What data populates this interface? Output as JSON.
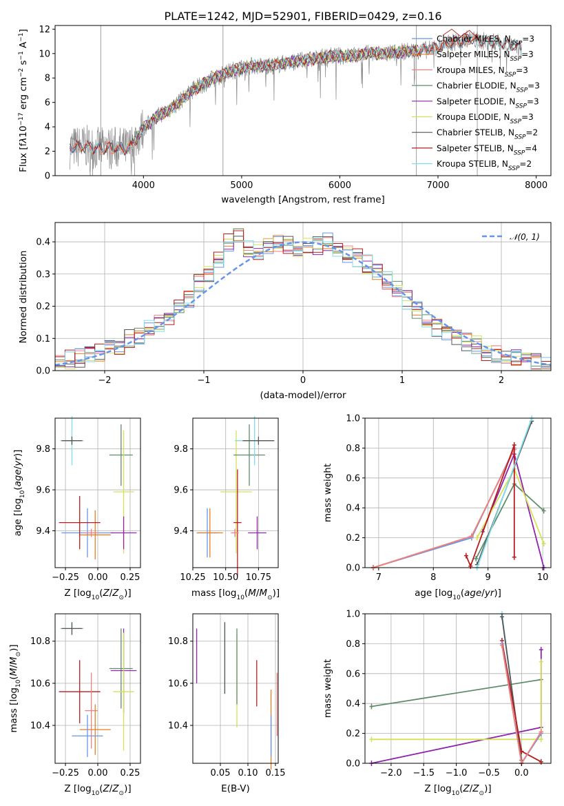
{
  "title": "PLATE=1242, MJD=52901, FIBERID=0429, z=0.16",
  "colors": {
    "chabrier_miles": "#6495ED",
    "salpeter_miles": "#E67E22",
    "kroupa_miles": "#F08080",
    "chabrier_elodie": "#5E8C6A",
    "salpeter_elodie": "#8E24AA",
    "kroupa_elodie": "#D4E157",
    "chabrier_stelib": "#555555",
    "salpeter_stelib": "#B71C1C",
    "kroupa_stelib": "#80DEEA",
    "data": "#888888",
    "gaussian": "#6495ED"
  },
  "legend_spectrum": [
    {
      "label": "Chabrier MILES, N_SSP=3",
      "key": "chabrier_miles"
    },
    {
      "label": "Salpeter MILES, N_SSP=3",
      "key": "salpeter_miles"
    },
    {
      "label": "Kroupa MILES, N_SSP=3",
      "key": "kroupa_miles"
    },
    {
      "label": "Chabrier ELODIE, N_SSP=3",
      "key": "chabrier_elodie"
    },
    {
      "label": "Salpeter ELODIE, N_SSP=3",
      "key": "salpeter_elodie"
    },
    {
      "label": "Kroupa ELODIE, N_SSP=3",
      "key": "kroupa_elodie"
    },
    {
      "label": "Chabrier STELIB, N_SSP=2",
      "key": "chabrier_stelib"
    },
    {
      "label": "Salpeter STELIB, N_SSP=4",
      "key": "salpeter_stelib"
    },
    {
      "label": "Kroupa STELIB, N_SSP=2",
      "key": "kroupa_stelib"
    }
  ],
  "legend_hist": "𝒩(0, 1)",
  "chart_data": [
    {
      "type": "line",
      "name": "spectrum",
      "xlabel": "wavelength [Angstrom, rest frame]",
      "ylabel": "Flux [fλ 10^-17 erg cm^-2 s^-1 A^-1]",
      "xlim": [
        3100,
        8150
      ],
      "ylim": [
        0,
        12.3
      ],
      "xticks": [
        4000,
        5000,
        6000,
        7000,
        8000
      ],
      "yticks": [
        0,
        2,
        4,
        6,
        8,
        10,
        12
      ],
      "model_continuum": {
        "x": [
          3250,
          3400,
          3550,
          3700,
          3850,
          4000,
          4150,
          4300,
          4500,
          4700,
          4900,
          5100,
          5300,
          5500,
          5700,
          5900,
          6100,
          6300,
          6500,
          6700,
          6900,
          7100,
          7300,
          7500,
          7700,
          7850
        ],
        "y": [
          2.3,
          2.4,
          2.2,
          2.3,
          2.2,
          3.9,
          4.9,
          5.6,
          7.0,
          7.9,
          8.6,
          9.0,
          9.0,
          9.3,
          9.5,
          9.8,
          9.8,
          10.0,
          10.0,
          10.2,
          10.3,
          10.8,
          11.2,
          11.0,
          10.8,
          10.4
        ]
      },
      "salpeter_stelib_red_end": [
        11.5,
        12.0,
        11.4,
        11.9,
        11.2
      ]
    },
    {
      "type": "histogram",
      "name": "residuals",
      "xlabel": "(data-model)/error",
      "ylabel": "Normed distribution",
      "xlim": [
        -2.5,
        2.5
      ],
      "ylim": [
        0,
        0.46
      ],
      "xticks": [
        -2,
        -1,
        0,
        1,
        2
      ],
      "yticks": [
        0.0,
        0.1,
        0.2,
        0.3,
        0.4
      ],
      "bin_edges": [
        -2.5,
        -2.4,
        -2.3,
        -2.2,
        -2.1,
        -2.0,
        -1.9,
        -1.8,
        -1.7,
        -1.6,
        -1.5,
        -1.4,
        -1.3,
        -1.2,
        -1.1,
        -1.0,
        -0.9,
        -0.8,
        -0.7,
        -0.6,
        -0.5,
        -0.4,
        -0.3,
        -0.2,
        -0.1,
        0.0,
        0.1,
        0.2,
        0.3,
        0.4,
        0.5,
        0.6,
        0.7,
        0.8,
        0.9,
        1.0,
        1.1,
        1.2,
        1.3,
        1.4,
        1.5,
        1.6,
        1.7,
        1.8,
        1.9,
        2.0,
        2.1,
        2.2,
        2.3,
        2.4,
        2.5
      ],
      "base_values": [
        0.04,
        0.035,
        0.04,
        0.05,
        0.055,
        0.07,
        0.08,
        0.1,
        0.11,
        0.13,
        0.15,
        0.17,
        0.2,
        0.22,
        0.27,
        0.3,
        0.35,
        0.4,
        0.42,
        0.38,
        0.37,
        0.39,
        0.4,
        0.39,
        0.38,
        0.39,
        0.39,
        0.4,
        0.38,
        0.36,
        0.35,
        0.33,
        0.31,
        0.28,
        0.25,
        0.22,
        0.19,
        0.16,
        0.13,
        0.12,
        0.11,
        0.09,
        0.08,
        0.06,
        0.05,
        0.04,
        0.035,
        0.03,
        0.025,
        0.02
      ],
      "gaussian": {
        "mu": 0,
        "sigma": 1
      }
    },
    {
      "type": "scatter",
      "name": "age_vs_Z",
      "xlabel": "Z [log10(Z/Z⊙)]",
      "ylabel": "age [log10(age/yr)]",
      "xlim": [
        -0.33,
        0.33
      ],
      "ylim": [
        9.22,
        9.95
      ],
      "xticks": [
        -0.25,
        0.0,
        0.25
      ],
      "yticks": [
        9.4,
        9.6,
        9.8
      ],
      "points": [
        {
          "key": "kroupa_stelib",
          "x": -0.2,
          "y": 9.84,
          "xerr": 0.09,
          "yerr": 0.12
        },
        {
          "key": "chabrier_stelib",
          "x": -0.2,
          "y": 9.84,
          "xerr": 0.08,
          "yerr": 0.02
        },
        {
          "key": "chabrier_miles",
          "x": -0.08,
          "y": 9.39,
          "xerr": 0.2,
          "yerr": 0.12
        },
        {
          "key": "salpeter_miles",
          "x": -0.02,
          "y": 9.38,
          "xerr": 0.12,
          "yerr": 0.12
        },
        {
          "key": "kroupa_miles",
          "x": -0.05,
          "y": 9.39,
          "xerr": 0.05,
          "yerr": 0.02
        },
        {
          "key": "salpeter_stelib",
          "x": -0.14,
          "y": 9.44,
          "xerr": 0.16,
          "yerr": 0.13
        },
        {
          "key": "chabrier_elodie",
          "x": 0.18,
          "y": 9.77,
          "xerr": 0.09,
          "yerr": 0.15
        },
        {
          "key": "kroupa_elodie",
          "x": 0.2,
          "y": 9.59,
          "xerr": 0.08,
          "yerr": 0.3
        },
        {
          "key": "salpeter_elodie",
          "x": 0.2,
          "y": 9.39,
          "xerr": 0.1,
          "yerr": 0.08
        }
      ]
    },
    {
      "type": "scatter",
      "name": "age_vs_mass",
      "xlabel": "mass [log10(M/M⊙)]",
      "ylabel": "",
      "xlim": [
        10.25,
        10.9
      ],
      "ylim": [
        9.22,
        9.95
      ],
      "xticks": [
        10.25,
        10.5,
        10.75
      ],
      "yticks": [
        9.4,
        9.6,
        9.8
      ],
      "points": [
        {
          "key": "chabrier_miles",
          "x": 10.36,
          "y": 9.39,
          "xerr": 0.08,
          "yerr": 0.12
        },
        {
          "key": "salpeter_miles",
          "x": 10.38,
          "y": 9.39,
          "xerr": 0.1,
          "yerr": 0.12
        },
        {
          "key": "kroupa_elodie",
          "x": 10.58,
          "y": 9.59,
          "xerr": 0.12,
          "yerr": 0.3
        },
        {
          "key": "chabrier_elodie",
          "x": 10.68,
          "y": 9.77,
          "xerr": 0.12,
          "yerr": 0.15
        },
        {
          "key": "kroupa_stelib",
          "x": 10.72,
          "y": 9.84,
          "xerr": 0.15,
          "yerr": 0.12
        },
        {
          "key": "chabrier_stelib",
          "x": 10.75,
          "y": 9.84,
          "xerr": 0.12,
          "yerr": 0.02
        },
        {
          "key": "salpeter_stelib",
          "x": 10.59,
          "y": 9.44,
          "xerr": 0.03,
          "yerr": 0.26
        },
        {
          "key": "salpeter_elodie",
          "x": 10.74,
          "y": 9.39,
          "xerr": 0.07,
          "yerr": 0.08
        },
        {
          "key": "kroupa_miles",
          "x": 10.57,
          "y": 9.39,
          "xerr": 0.03,
          "yerr": 0.02
        }
      ]
    },
    {
      "type": "line",
      "name": "weight_vs_age",
      "xlabel": "age [log10(age/yr)]",
      "ylabel": "mass weight",
      "xlim": [
        6.75,
        10.15
      ],
      "ylim": [
        0,
        1
      ],
      "xticks": [
        7,
        8,
        9,
        10
      ],
      "yticks": [
        0.0,
        0.2,
        0.4,
        0.6,
        0.8,
        1.0
      ],
      "series": [
        {
          "key": "chabrier_miles",
          "x": [
            6.9,
            8.7,
            9.48
          ],
          "y": [
            0.0,
            0.2,
            0.8
          ]
        },
        {
          "key": "salpeter_miles",
          "x": [
            6.9,
            8.7,
            9.48
          ],
          "y": [
            0.0,
            0.21,
            0.79
          ]
        },
        {
          "key": "kroupa_miles",
          "x": [
            6.9,
            8.7,
            9.48
          ],
          "y": [
            0.0,
            0.21,
            0.79
          ]
        },
        {
          "key": "chabrier_elodie",
          "x": [
            8.78,
            9.48,
            10.02
          ],
          "y": [
            0.06,
            0.56,
            0.38
          ]
        },
        {
          "key": "salpeter_elodie",
          "x": [
            8.9,
            9.48,
            10.02
          ],
          "y": [
            0.24,
            0.76,
            0.0
          ]
        },
        {
          "key": "kroupa_elodie",
          "x": [
            8.8,
            9.48,
            10.02
          ],
          "y": [
            0.2,
            0.66,
            0.16
          ]
        },
        {
          "key": "chabrier_stelib",
          "x": [
            8.8,
            9.8
          ],
          "y": [
            0.02,
            0.98
          ]
        },
        {
          "key": "salpeter_stelib",
          "x": [
            8.6,
            8.68,
            9.48,
            9.48
          ],
          "y": [
            0.08,
            0.01,
            0.82,
            0.07
          ]
        },
        {
          "key": "kroupa_stelib",
          "x": [
            8.8,
            9.8
          ],
          "y": [
            0.0,
            1.0
          ]
        }
      ]
    },
    {
      "type": "scatter",
      "name": "mass_vs_Z",
      "xlabel": "Z [log10(Z/Z⊙)]",
      "ylabel": "mass [log10(M/M⊙)]",
      "xlim": [
        -0.33,
        0.33
      ],
      "ylim": [
        10.22,
        10.93
      ],
      "xticks": [
        -0.25,
        0.0,
        0.25
      ],
      "yticks": [
        10.4,
        10.6,
        10.8
      ],
      "points": [
        {
          "key": "kroupa_stelib",
          "x": -0.2,
          "y": 10.86,
          "xerr": 0.09,
          "yerr": 0.03
        },
        {
          "key": "chabrier_stelib",
          "x": -0.2,
          "y": 10.86,
          "xerr": 0.08,
          "yerr": 0.03
        },
        {
          "key": "chabrier_elodie",
          "x": 0.18,
          "y": 10.67,
          "xerr": 0.09,
          "yerr": 0.19
        },
        {
          "key": "salpeter_elodie",
          "x": 0.2,
          "y": 10.66,
          "xerr": 0.1,
          "yerr": 0.2
        },
        {
          "key": "kroupa_elodie",
          "x": 0.2,
          "y": 10.56,
          "xerr": 0.08,
          "yerr": 0.28
        },
        {
          "key": "salpeter_stelib",
          "x": -0.14,
          "y": 10.56,
          "xerr": 0.16,
          "yerr": 0.15
        },
        {
          "key": "kroupa_miles",
          "x": -0.05,
          "y": 10.47,
          "xerr": 0.05,
          "yerr": 0.18
        },
        {
          "key": "salpeter_miles",
          "x": -0.02,
          "y": 10.38,
          "xerr": 0.12,
          "yerr": 0.12
        },
        {
          "key": "chabrier_miles",
          "x": -0.08,
          "y": 10.35,
          "xerr": 0.12,
          "yerr": 0.1
        }
      ]
    },
    {
      "type": "scatter",
      "name": "mass_vs_EBV",
      "xlabel": "E(B-V)",
      "ylabel": "",
      "xlim": [
        0.0,
        0.155
      ],
      "ylim": [
        10.22,
        10.93
      ],
      "xticks": [
        0.05,
        0.1,
        0.15
      ],
      "yticks": [
        10.4,
        10.6,
        10.8
      ],
      "points": [
        {
          "key": "salpeter_elodie",
          "x": 0.007,
          "y": 10.73,
          "yerr": 0.13
        },
        {
          "key": "kroupa_stelib",
          "x": 0.058,
          "y": 10.72,
          "yerr": 0.17
        },
        {
          "key": "chabrier_stelib",
          "x": 0.058,
          "y": 10.72,
          "yerr": 0.17
        },
        {
          "key": "kroupa_elodie",
          "x": 0.08,
          "y": 10.61,
          "yerr": 0.22
        },
        {
          "key": "chabrier_elodie",
          "x": 0.08,
          "y": 10.68,
          "yerr": 0.18
        },
        {
          "key": "salpeter_stelib",
          "x": 0.116,
          "y": 10.6,
          "yerr": 0.11
        },
        {
          "key": "salpeter_miles",
          "x": 0.142,
          "y": 10.38,
          "yerr": 0.19
        },
        {
          "key": "chabrier_miles",
          "x": 0.142,
          "y": 10.35,
          "yerr": 0.1
        },
        {
          "key": "kroupa_miles",
          "x": 0.153,
          "y": 10.5,
          "yerr": 0.15
        }
      ]
    },
    {
      "type": "line",
      "name": "weight_vs_Z",
      "xlabel": "Z [log10(Z/Z⊙)]",
      "ylabel": "mass weight",
      "xlim": [
        -2.4,
        0.45
      ],
      "ylim": [
        0,
        1
      ],
      "xticks": [
        -2.0,
        -1.5,
        -1.0,
        -0.5,
        0.0
      ],
      "yticks": [
        0.0,
        0.2,
        0.4,
        0.6,
        0.8,
        1.0
      ],
      "series": [
        {
          "key": "chabrier_elodie",
          "x": [
            -2.3,
            0.3
          ],
          "y": [
            0.38,
            0.56
          ]
        },
        {
          "key": "salpeter_elodie",
          "x": [
            -2.3,
            0.3,
            0.3
          ],
          "y": [
            0.0,
            0.24,
            0.76
          ]
        },
        {
          "key": "kroupa_elodie",
          "x": [
            -2.3,
            0.3,
            0.3
          ],
          "y": [
            0.16,
            0.16,
            0.68
          ]
        },
        {
          "key": "kroupa_stelib",
          "x": [
            -0.3,
            0.0
          ],
          "y": [
            1.0,
            0.0
          ]
        },
        {
          "key": "chabrier_stelib",
          "x": [
            -0.3,
            0.0
          ],
          "y": [
            0.98,
            0.02
          ]
        },
        {
          "key": "salpeter_stelib",
          "x": [
            -0.3,
            0.0,
            0.3
          ],
          "y": [
            0.82,
            0.08,
            0.01
          ]
        },
        {
          "key": "salpeter_miles",
          "x": [
            -0.3,
            0.0,
            0.3
          ],
          "y": [
            0.79,
            0.0,
            0.21
          ]
        },
        {
          "key": "chabrier_miles",
          "x": [
            -0.3,
            0.0,
            0.3
          ],
          "y": [
            0.8,
            0.0,
            0.2
          ]
        },
        {
          "key": "kroupa_miles",
          "x": [
            -0.3,
            0.0,
            0.3
          ],
          "y": [
            0.79,
            0.0,
            0.21
          ]
        }
      ]
    }
  ]
}
